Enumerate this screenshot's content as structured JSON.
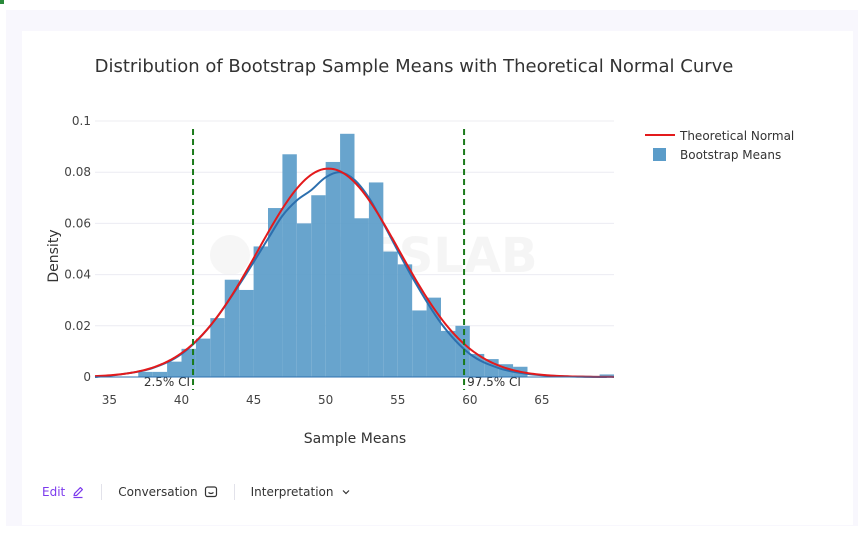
{
  "chart_data": {
    "type": "histogram",
    "title": "Distribution of Bootstrap Sample Means with Theoretical Normal Curve",
    "xlabel": "Sample Means",
    "ylabel": "Density",
    "xlim": [
      34,
      70
    ],
    "ylim": [
      0,
      0.1
    ],
    "x_ticks": [
      35,
      40,
      45,
      50,
      55,
      60,
      65
    ],
    "y_ticks": [
      0,
      0.02,
      0.04,
      0.06,
      0.08,
      0.1
    ],
    "y_tick_labels": [
      "0",
      "0.02",
      "0.04",
      "0.06",
      "0.08",
      "0.1"
    ],
    "grid": true,
    "legend_position": "top-right",
    "histogram": {
      "name": "Bootstrap Means",
      "color": "#5b9cc9",
      "bin_width": 1,
      "bin_starts": [
        37,
        38,
        39,
        40,
        41,
        42,
        43,
        44,
        45,
        46,
        47,
        48,
        49,
        50,
        51,
        52,
        53,
        54,
        55,
        56,
        57,
        58,
        59,
        60,
        61,
        62,
        63,
        69
      ],
      "values": [
        0.002,
        0.002,
        0.006,
        0.011,
        0.015,
        0.023,
        0.038,
        0.034,
        0.051,
        0.066,
        0.087,
        0.06,
        0.071,
        0.084,
        0.095,
        0.062,
        0.076,
        0.049,
        0.044,
        0.026,
        0.031,
        0.018,
        0.02,
        0.009,
        0.007,
        0.005,
        0.004,
        0.001
      ]
    },
    "normal_curve": {
      "name": "Theoretical Normal",
      "color": "#e31a1c",
      "mean": 50.2,
      "sd": 4.9
    },
    "kde_curve": {
      "color": "#2c6fae",
      "x": [
        34,
        36,
        38,
        40,
        42,
        44,
        46,
        47,
        48,
        49,
        50,
        51,
        52,
        53,
        54,
        56,
        58,
        60,
        62,
        64,
        66,
        68,
        69.5
      ],
      "y": [
        0.0,
        0.0012,
        0.0035,
        0.009,
        0.02,
        0.036,
        0.054,
        0.063,
        0.069,
        0.073,
        0.078,
        0.08,
        0.077,
        0.07,
        0.06,
        0.039,
        0.021,
        0.009,
        0.0035,
        0.0012,
        0.0004,
        0.0001,
        0.0
      ]
    },
    "ci_lines": [
      {
        "x": 40.8,
        "label": "2.5% CI",
        "color": "#1a7a1a"
      },
      {
        "x": 59.6,
        "label": "97.5% CI",
        "color": "#1a7a1a"
      }
    ]
  },
  "toolbar": {
    "edit_label": "Edit",
    "conversation_label": "Conversation",
    "interpretation_label": "Interpretation"
  }
}
